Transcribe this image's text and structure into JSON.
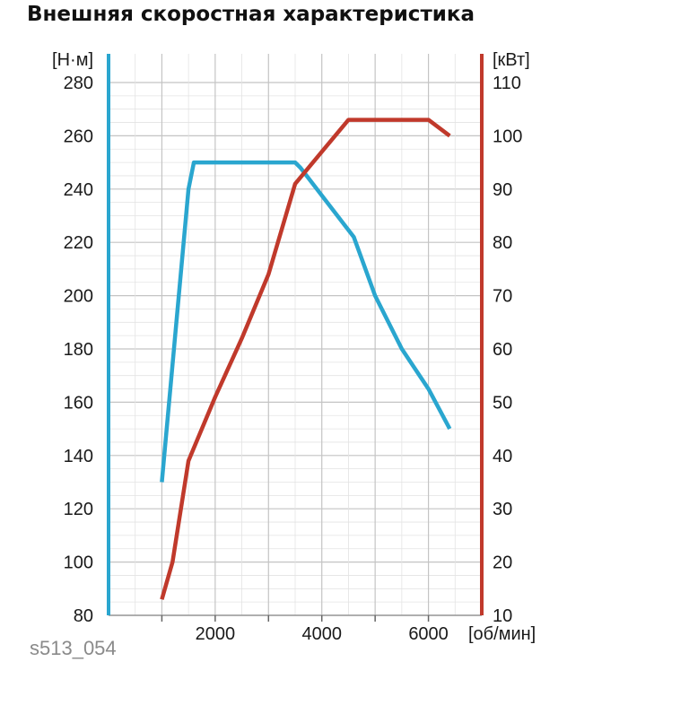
{
  "title": "Внешняя скоростная характеристика",
  "caption": "s513_054",
  "colors": {
    "torque": "#2aa6cf",
    "power": "#c0392b",
    "grid_major": "#c4c4c4",
    "grid_minor": "#e3e3e3",
    "text": "#1a1a1a"
  },
  "chart_data": {
    "type": "line",
    "title": "Внешняя скоростная характеристика",
    "xlabel": "[об/мин]",
    "xlim": [
      0,
      7000
    ],
    "x_ticks": [
      2000,
      4000,
      6000
    ],
    "grid": true,
    "left_axis": {
      "unit_label": "[Н·м]",
      "ylim": [
        80,
        280
      ],
      "ticks": [
        80,
        100,
        120,
        140,
        160,
        180,
        200,
        220,
        240,
        260,
        280
      ]
    },
    "right_axis": {
      "unit_label": "[кВт]",
      "ylim": [
        10,
        110
      ],
      "ticks": [
        10,
        20,
        30,
        40,
        50,
        60,
        70,
        80,
        90,
        100,
        110
      ]
    },
    "series": [
      {
        "key": "torque",
        "axis": "left",
        "color": "#2aa6cf",
        "x": [
          1000,
          1500,
          1600,
          3500,
          3600,
          4600,
          5000,
          5500,
          6000,
          6400
        ],
        "y": [
          130,
          240,
          250,
          250,
          248,
          222,
          200,
          180,
          165,
          150
        ]
      },
      {
        "key": "power",
        "axis": "right",
        "color": "#c0392b",
        "x": [
          1000,
          1200,
          1500,
          2000,
          2500,
          3000,
          3500,
          4000,
          4500,
          5000,
          5500,
          6000,
          6400
        ],
        "y": [
          13,
          20,
          39,
          51,
          62,
          74,
          91,
          97,
          103,
          103,
          103,
          103,
          100
        ]
      }
    ]
  }
}
